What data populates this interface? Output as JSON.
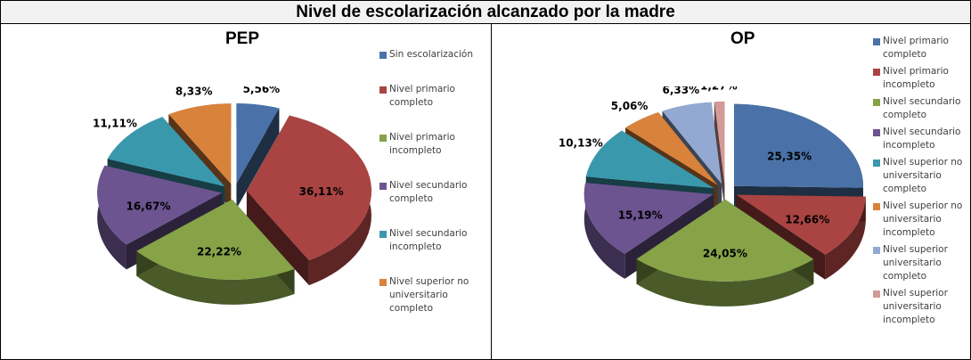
{
  "title": "Nivel de escolarización alcanzado por la madre",
  "chart_data": [
    {
      "type": "pie",
      "title": "PEP",
      "categories": [
        "Sin escolarización",
        "Nivel primario completo",
        "Nivel primario incompleto",
        "Nivel secundario completo",
        "Nivel secundario incompleto",
        "Nivel superior no universitario completo"
      ],
      "values": [
        5.56,
        36.11,
        22.22,
        16.67,
        11.11,
        8.33
      ],
      "labels": [
        "5,56%",
        "36,11%",
        "22,22%",
        "16,67%",
        "11,11%",
        "8,33%"
      ],
      "colors": [
        "#4a72a8",
        "#a94442",
        "#86a348",
        "#6b5490",
        "#3a98ad",
        "#d9823b"
      ],
      "legend_position": "right",
      "style": "3D exploded pie"
    },
    {
      "type": "pie",
      "title": "OP",
      "categories": [
        "Nivel primario completo",
        "Nivel primario incompleto",
        "Nivel secundario completo",
        "Nivel secundario incompleto",
        "Nivel superior no universitario completo",
        "Nivel superior no universitario incompleto",
        "Nivel superior universitario completo",
        "Nivel superior universitario incompleto"
      ],
      "values": [
        25.35,
        12.66,
        24.05,
        15.19,
        10.13,
        5.06,
        6.33,
        1.27
      ],
      "labels": [
        "25,35%",
        "12,66%",
        "24,05%",
        "15,19%",
        "10,13%",
        "5,06%",
        "6,33%",
        "1,27%"
      ],
      "colors": [
        "#4a72a8",
        "#a94442",
        "#86a348",
        "#6b5490",
        "#3a98ad",
        "#d9823b",
        "#93a9d2",
        "#d49a98"
      ],
      "legend_position": "right",
      "style": "3D exploded pie"
    }
  ],
  "pep": {
    "title": "PEP",
    "legend": [
      {
        "label": "Sin escolarización",
        "color": "#4a72a8"
      },
      {
        "label": "Nivel primario completo",
        "color": "#a94442"
      },
      {
        "label": "Nivel primario incompleto",
        "color": "#86a348"
      },
      {
        "label": "Nivel secundario completo",
        "color": "#6b5490"
      },
      {
        "label": "Nivel secundario incompleto",
        "color": "#3a98ad"
      },
      {
        "label": "Nivel superior no universitario completo",
        "color": "#d9823b"
      }
    ]
  },
  "op": {
    "title": "OP",
    "legend": [
      {
        "label": "Nivel primario completo",
        "color": "#4a72a8"
      },
      {
        "label": "Nivel primario incompleto",
        "color": "#a94442"
      },
      {
        "label": "Nivel secundario completo",
        "color": "#86a348"
      },
      {
        "label": "Nivel secundario incompleto",
        "color": "#6b5490"
      },
      {
        "label": "Nivel superior no universitario completo",
        "color": "#3a98ad"
      },
      {
        "label": "Nivel  superior no universitario incompleto",
        "color": "#d9823b"
      },
      {
        "label": "Nivel  superior universitario completo",
        "color": "#93a9d2"
      },
      {
        "label": "Nivel  superior universitario incompleto",
        "color": "#d49a98"
      }
    ]
  }
}
